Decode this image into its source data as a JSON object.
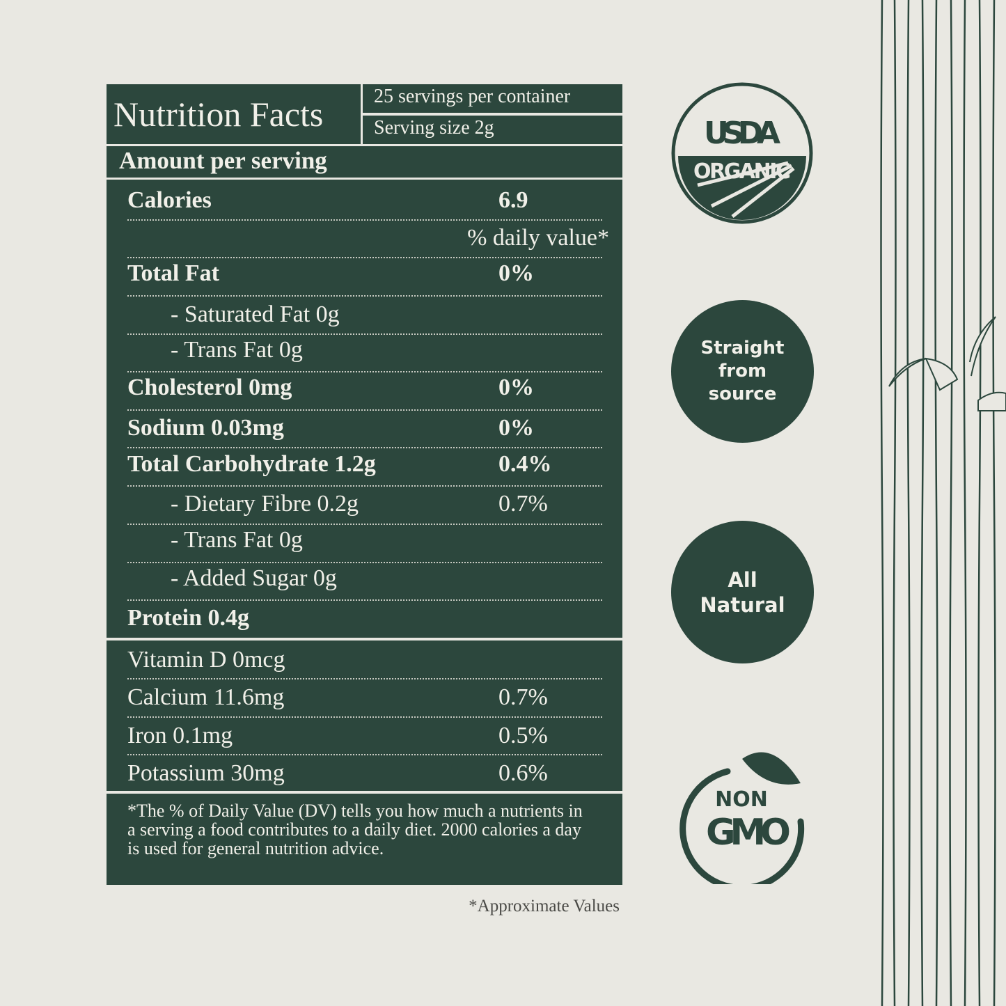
{
  "colors": {
    "background": "#e9e8e2",
    "brand_green": "#2c473d",
    "text_light": "#f1f0e9"
  },
  "header": {
    "title": "Nutrition Facts",
    "servings": "25 servings per container",
    "serving_size": "Serving size 2g",
    "amount_per_serving": "Amount per serving"
  },
  "main_rows": [
    {
      "label": "Calories",
      "value": "6.9",
      "style": "bold"
    },
    {
      "label": "% daily value*",
      "value": "",
      "style": "right"
    },
    {
      "label": "Total Fat",
      "value": "0%",
      "style": "bold"
    },
    {
      "label": "- Saturated Fat 0g",
      "value": "",
      "style": "ind"
    },
    {
      "label": "- Trans Fat 0g",
      "value": "",
      "style": "ind"
    },
    {
      "label": "Cholesterol 0mg",
      "value": "0%",
      "style": "bold"
    },
    {
      "label": "Sodium 0.03mg",
      "value": "0%",
      "style": "bold"
    },
    {
      "label": "Total Carbohydrate 1.2g",
      "value": "0.4%",
      "style": "bold"
    },
    {
      "label": "- Dietary Fibre 0.2g",
      "value": "0.7%",
      "style": "ind"
    },
    {
      "label": "- Trans Fat 0g",
      "value": "",
      "style": "ind"
    },
    {
      "label": "- Added Sugar 0g",
      "value": "",
      "style": "ind"
    },
    {
      "label": "Protein 0.4g",
      "value": "",
      "style": "bold"
    }
  ],
  "vitamin_rows": [
    {
      "label": "Vitamin D 0mcg",
      "value": ""
    },
    {
      "label": "Calcium 11.6mg",
      "value": "0.7%"
    },
    {
      "label": "Iron 0.1mg",
      "value": "0.5%"
    },
    {
      "label": "Potassium 30mg",
      "value": "0.6%"
    }
  ],
  "footnote": "*The % of Daily Value (DV) tells you how much a nutrients in a serving a food contributes to a daily diet. 2000 calories a day is used for general nutrition advice.",
  "approx_note": "*Approximate Values",
  "badges": {
    "usda_top": "USDA",
    "usda_bottom": "ORGANIC",
    "straight": [
      "Straight",
      "from",
      "source"
    ],
    "natural": [
      "All",
      "Natural"
    ],
    "non_gmo_top": "NON",
    "non_gmo_bottom": "GMO"
  }
}
